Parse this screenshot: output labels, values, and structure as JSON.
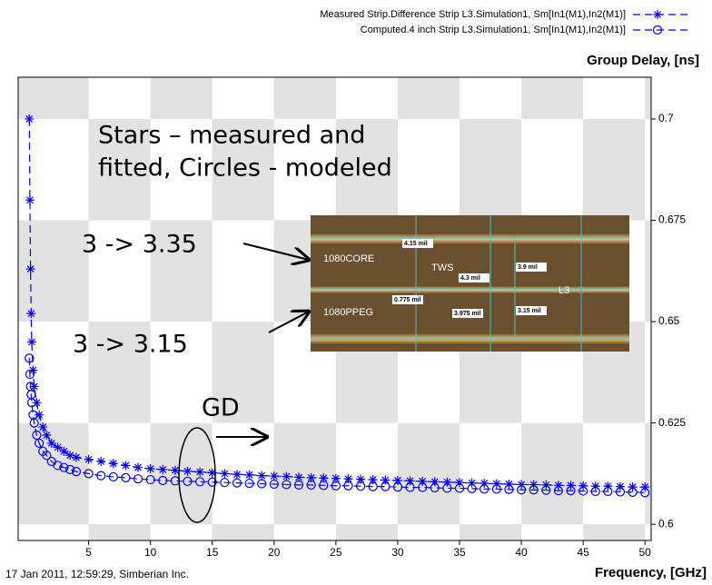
{
  "chart_data": {
    "type": "line",
    "x": [
      0.2,
      0.25,
      0.3,
      0.35,
      0.4,
      0.5,
      0.6,
      0.8,
      1,
      1.3,
      1.6,
      2,
      2.5,
      3,
      3.5,
      4,
      5,
      6,
      7,
      8,
      9,
      10,
      11,
      12,
      13,
      14,
      15,
      16,
      17,
      18,
      19,
      20,
      21,
      22,
      23,
      24,
      25,
      26,
      27,
      28,
      29,
      30,
      31,
      32,
      33,
      34,
      35,
      36,
      37,
      38,
      39,
      40,
      41,
      42,
      43,
      44,
      45,
      46,
      47,
      48,
      49,
      50
    ],
    "series": [
      {
        "name": "Measured Strip.Difference Strip L3.Simulation1, Sm[In1(M1),In2(M1)]",
        "color": "#0000ff",
        "marker": "star",
        "values": [
          0.7,
          0.68,
          0.663,
          0.652,
          0.645,
          0.638,
          0.634,
          0.63,
          0.627,
          0.624,
          0.622,
          0.62,
          0.619,
          0.618,
          0.617,
          0.6165,
          0.616,
          0.6155,
          0.615,
          0.6145,
          0.614,
          0.6137,
          0.6135,
          0.6133,
          0.6131,
          0.6129,
          0.6127,
          0.6125,
          0.6123,
          0.6122,
          0.612,
          0.6119,
          0.6118,
          0.6116,
          0.6115,
          0.6114,
          0.6113,
          0.6112,
          0.6111,
          0.611,
          0.6109,
          0.6108,
          0.6107,
          0.6106,
          0.6105,
          0.6104,
          0.6103,
          0.6102,
          0.6101,
          0.61,
          0.6099,
          0.6098,
          0.6098,
          0.6097,
          0.6096,
          0.6096,
          0.6095,
          0.6094,
          0.6094,
          0.6093,
          0.6092,
          0.6092
        ]
      },
      {
        "name": "Computed.4 inch Strip L3.Simulation1, Sm[In1(M1),In2(M1)]",
        "color": "#0000ff",
        "marker": "circle",
        "values": [
          0.641,
          0.637,
          0.634,
          0.632,
          0.63,
          0.627,
          0.625,
          0.622,
          0.62,
          0.618,
          0.617,
          0.6155,
          0.6145,
          0.614,
          0.6135,
          0.613,
          0.6125,
          0.612,
          0.6117,
          0.6115,
          0.6112,
          0.611,
          0.6108,
          0.6107,
          0.6106,
          0.6105,
          0.6104,
          0.6103,
          0.6102,
          0.6101,
          0.61,
          0.6099,
          0.6098,
          0.6097,
          0.6097,
          0.6096,
          0.6095,
          0.6095,
          0.6094,
          0.6093,
          0.6093,
          0.6092,
          0.6091,
          0.6091,
          0.609,
          0.6089,
          0.6089,
          0.6088,
          0.6087,
          0.6087,
          0.6086,
          0.6085,
          0.6085,
          0.6084,
          0.6083,
          0.6083,
          0.6082,
          0.6081,
          0.6081,
          0.608,
          0.6079,
          0.6078
        ]
      }
    ],
    "xlim": [
      -0.7,
      50.5
    ],
    "xticks": [
      5,
      10,
      15,
      20,
      25,
      30,
      35,
      40,
      45,
      50
    ],
    "ylim": [
      0.596,
      0.7103
    ],
    "yticks": [
      0.6,
      0.625,
      0.65,
      0.675,
      0.7
    ],
    "y_label": "Group Delay, [ns]",
    "x_label": "Frequency, [GHz]",
    "footer": "17 Jan 2011, 12:59:29, Simberian Inc.",
    "annotations": {
      "note": [
        "Stars – measured and",
        "fitted, Circles - modeled"
      ],
      "core": "3 -> 3.35",
      "preg": "3 -> 3.15",
      "gd": "GD"
    },
    "inset": {
      "core": "1080CORE",
      "tws": "TWS",
      "layer": "L3",
      "preg": "1080PPEG",
      "dims": [
        "4.15 mil",
        "4.3 mil",
        "3.9 mil",
        "0.775 mil",
        "3.975 mil",
        "3.15 mil"
      ]
    }
  }
}
